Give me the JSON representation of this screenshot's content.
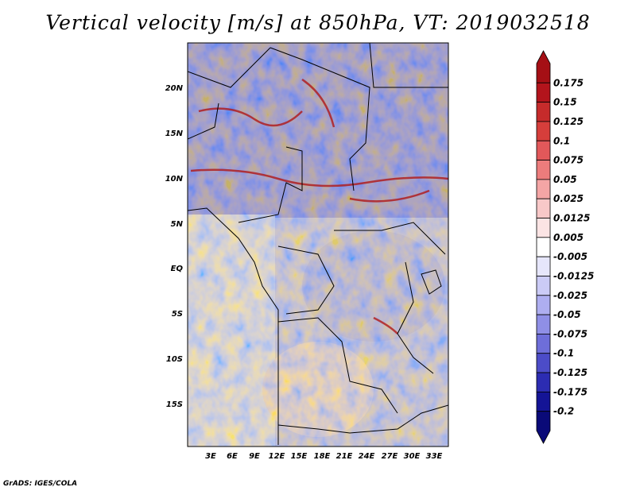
{
  "title": "Vertical velocity [m/s] at 850hPa, VT: 2019032518",
  "credit": "GrADS: IGES/COLA",
  "map": {
    "lat_labels": [
      "20N",
      "15N",
      "10N",
      "5N",
      "EQ",
      "5S",
      "10S",
      "15S"
    ],
    "lon_labels": [
      "3E",
      "6E",
      "9E",
      "12E",
      "15E",
      "18E",
      "21E",
      "24E",
      "27E",
      "30E",
      "33E"
    ]
  },
  "colorbar": {
    "labels": [
      "0.175",
      "0.15",
      "0.125",
      "0.1",
      "0.075",
      "0.05",
      "0.025",
      "0.0125",
      "0.005",
      "-0.005",
      "-0.0125",
      "-0.025",
      "-0.05",
      "-0.075",
      "-0.1",
      "-0.125",
      "-0.175",
      "-0.2"
    ],
    "colors": [
      "#a50f15",
      "#b3141c",
      "#c62b2b",
      "#d63e3b",
      "#e2585a",
      "#ec7c7c",
      "#f4a5a5",
      "#f8c8c8",
      "#fbe4e4",
      "#ffffff",
      "#e6e6fb",
      "#cbcbf6",
      "#aeaef0",
      "#8f8fe6",
      "#6e6ed9",
      "#4c4cc8",
      "#2c2cb2",
      "#141496",
      "#0a0a78"
    ]
  }
}
